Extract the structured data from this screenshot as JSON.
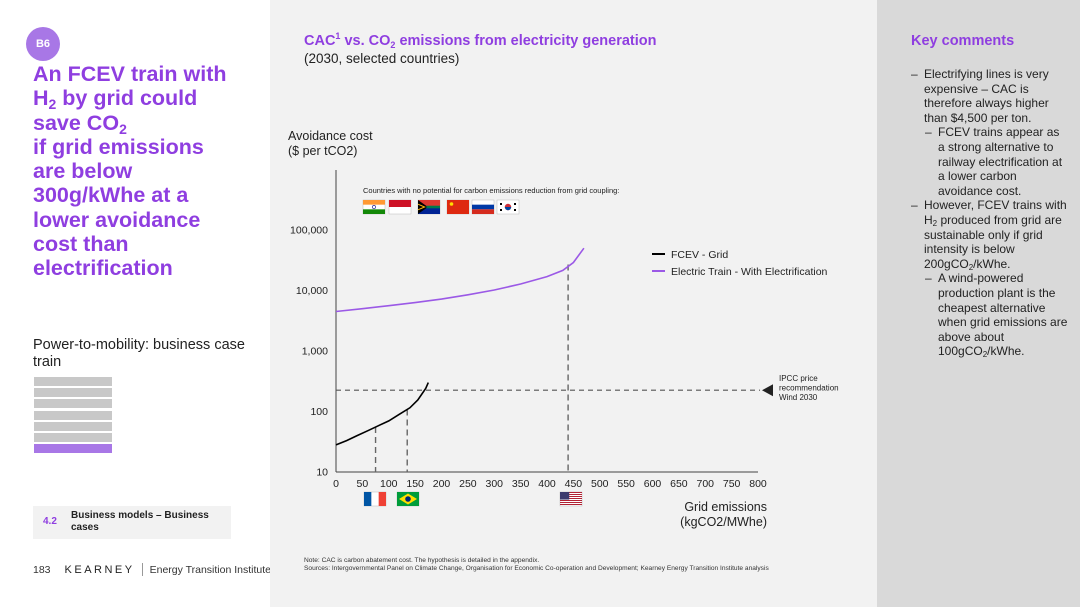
{
  "left": {
    "badge": "B6",
    "headline_lines": [
      "An FCEV train with",
      "H",
      "2",
      " by grid could",
      "save CO",
      "2",
      "if grid emissions",
      "are below",
      "300g/kWhe at a",
      "lower avoidance",
      "cost than",
      "electrification"
    ],
    "subtitle": "Power-to-mobility: business case train",
    "nav_items": 7,
    "section_number": "4.2",
    "section_label": "Business models – Business cases",
    "page_number": "183",
    "brand": "KEARNEY",
    "institute": "Energy Transition Institute"
  },
  "center": {
    "title_parts": [
      "CAC",
      "1",
      " vs. CO",
      "2",
      " emissions from electricity generation"
    ],
    "subtitle": "(2030, selected countries)",
    "notes": [
      "Note: CAC is carbon abatement cost. The hypothesis is detailed in the appendix.",
      "Sources: Intergovernmental Panel on Climate Change, Organisation for Economic Co-operation and Development; Kearney Energy Transition Institute analysis"
    ]
  },
  "chart_data": {
    "type": "line",
    "ylabel_lines": [
      "Avoidance cost",
      "($ per tCO2)"
    ],
    "xlabel_lines": [
      "Grid emissions",
      "(kgCO2/MWhe)"
    ],
    "y_scale": "log",
    "ylim": [
      10,
      100000
    ],
    "yticks": [
      10,
      100,
      1000,
      10000,
      100000
    ],
    "ytick_labels": [
      "10",
      "100",
      "1,000",
      "10,000",
      "100,000"
    ],
    "xlim": [
      0,
      800
    ],
    "xticks": [
      0,
      50,
      100,
      150,
      200,
      250,
      300,
      350,
      400,
      450,
      500,
      550,
      600,
      650,
      700,
      750,
      800
    ],
    "series": [
      {
        "name": "FCEV - Grid",
        "color": "#000000",
        "points": [
          [
            0,
            28
          ],
          [
            20,
            33
          ],
          [
            40,
            40
          ],
          [
            60,
            48
          ],
          [
            80,
            58
          ],
          [
            100,
            70
          ],
          [
            120,
            90
          ],
          [
            140,
            115
          ],
          [
            155,
            155
          ],
          [
            170,
            240
          ],
          [
            175,
            300
          ]
        ]
      },
      {
        "name": "Electric Train - With Electrification",
        "color": "#9b59e6",
        "points": [
          [
            0,
            4500
          ],
          [
            50,
            5000
          ],
          [
            100,
            5600
          ],
          [
            150,
            6300
          ],
          [
            200,
            7200
          ],
          [
            250,
            8500
          ],
          [
            300,
            10200
          ],
          [
            350,
            12800
          ],
          [
            400,
            17000
          ],
          [
            430,
            21500
          ],
          [
            450,
            29000
          ],
          [
            470,
            50000
          ]
        ]
      }
    ],
    "reference_line": {
      "label_lines": [
        "IPCC price",
        "recommendation",
        "Wind 2030"
      ],
      "value": 225
    },
    "vertical_markers": [
      {
        "x": 75,
        "flags": [
          "france"
        ]
      },
      {
        "x": 135,
        "flags": [
          "brazil"
        ]
      },
      {
        "x": 440,
        "flags": [
          "usa"
        ]
      }
    ],
    "top_note": "Countries with no potential for carbon emissions reduction from grid coupling:",
    "top_flags": [
      "india",
      "indonesia",
      "south-africa",
      "china",
      "russia",
      "south-korea"
    ]
  },
  "right": {
    "title": "Key comments",
    "comments": [
      {
        "level": 1,
        "parts": [
          "Electrifying lines is very expensive – CAC is therefore always higher than $4,500 per ton."
        ]
      },
      {
        "level": 2,
        "parts": [
          "FCEV trains appear as a strong alternative to railway electrification at a lower carbon avoidance cost."
        ]
      },
      {
        "level": 1,
        "parts": [
          "However, FCEV trains with H",
          "2",
          " produced from grid are sustainable only if grid intensity is below 200gCO",
          "2",
          "/kWhe."
        ]
      },
      {
        "level": 2,
        "parts": [
          "A wind-powered production plant is the cheapest alternative when grid emissions are above about 100gCO",
          "2",
          "/kWhe."
        ]
      }
    ]
  }
}
